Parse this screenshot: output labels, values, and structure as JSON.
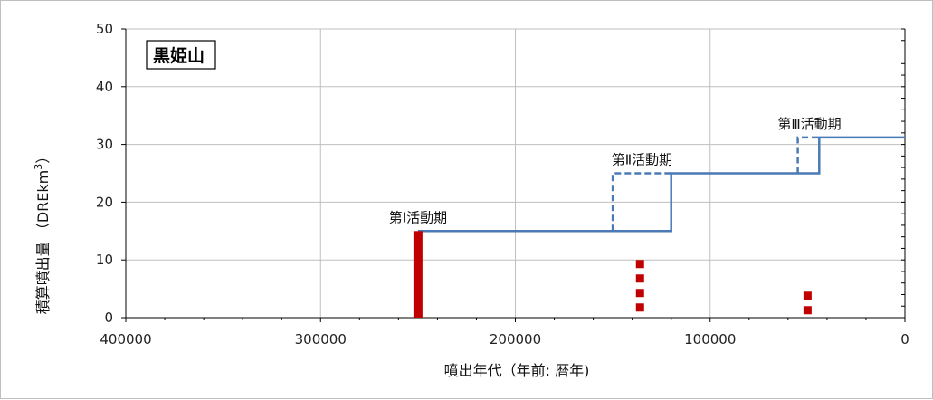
{
  "chart_data": {
    "type": "line",
    "title_box": "黒姫山",
    "xlabel": "噴出年代（年前: 暦年)",
    "ylabel": "積算噴出量 （DREkm",
    "ylabel_sup": "3",
    "ylabel_close": "）",
    "xlim": [
      400000,
      0
    ],
    "ylim": [
      0,
      50
    ],
    "x_ticks": [
      400000,
      300000,
      200000,
      100000,
      0
    ],
    "y_ticks": [
      0,
      10,
      20,
      30,
      40,
      50
    ],
    "x_tick_labels": [
      "400000",
      "300000",
      "200000",
      "100000",
      "0"
    ],
    "y_tick_labels": [
      "0",
      "10",
      "20",
      "30",
      "40",
      "50"
    ],
    "grid": true,
    "series": [
      {
        "style": "solid",
        "color": "#4a7ab5",
        "points": [
          [
            250000,
            15
          ],
          [
            150000,
            15
          ],
          [
            120000,
            15
          ],
          [
            120000,
            25
          ],
          [
            55000,
            25
          ],
          [
            44000,
            25
          ],
          [
            44000,
            31.2
          ],
          [
            0,
            31.2
          ]
        ]
      },
      {
        "style": "dashed",
        "color": "#4a7ab5",
        "points": [
          [
            150000,
            15
          ],
          [
            150000,
            25
          ],
          [
            120000,
            25
          ]
        ]
      },
      {
        "style": "dashed",
        "color": "#4a7ab5",
        "points": [
          [
            55000,
            25
          ],
          [
            55000,
            31.2
          ],
          [
            44000,
            31.2
          ]
        ]
      }
    ],
    "bars": [
      {
        "x": 250000,
        "y0": 0,
        "y1": 15,
        "style": "solid",
        "color": "#c00000"
      },
      {
        "x": 136000,
        "y0": 0,
        "y1": 10,
        "style": "dotted",
        "color": "#c00000"
      },
      {
        "x": 50000,
        "y0": 0,
        "y1": 4.5,
        "style": "dotted",
        "color": "#c00000"
      }
    ],
    "annotations": [
      {
        "text": "第Ⅰ活動期",
        "x": 250000,
        "y": 15
      },
      {
        "text": "第Ⅱ活動期",
        "x": 135000,
        "y": 25
      },
      {
        "text": "第Ⅲ活動期",
        "x": 49000,
        "y": 31.2
      }
    ]
  }
}
